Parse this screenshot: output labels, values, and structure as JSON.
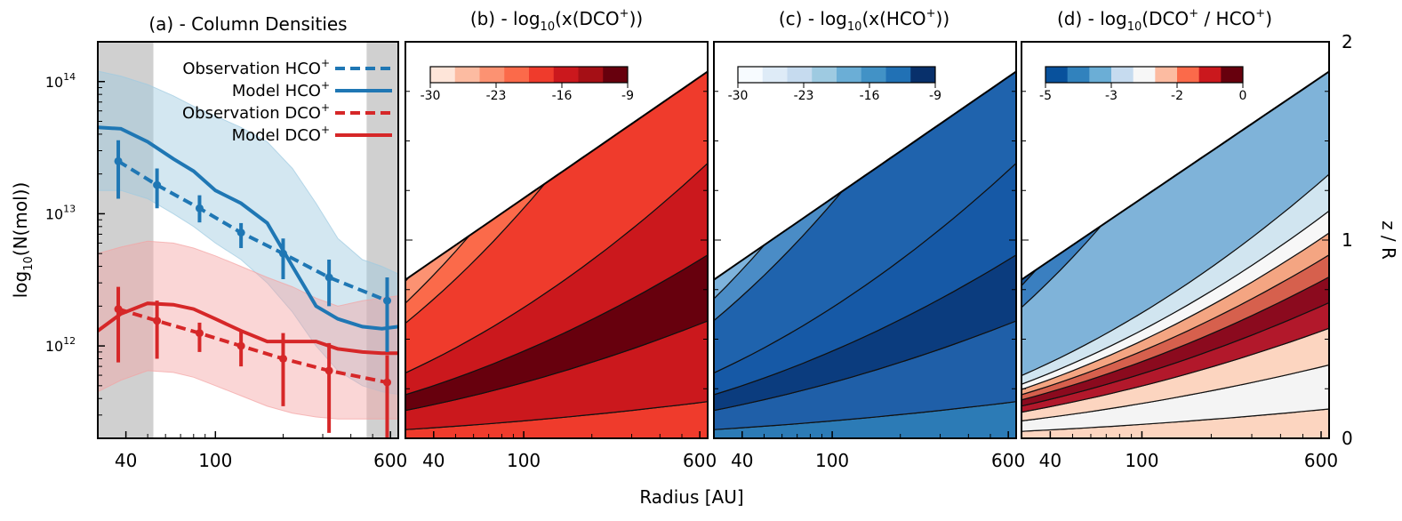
{
  "figure": {
    "xlabel": "Radius [AU]",
    "ylabel_left": "log",
    "ylabel_left_sub": "10",
    "ylabel_left_rest": "(N(mol))",
    "ylabel_right": "z / R"
  },
  "colors": {
    "hco_blue": "#1f77b4",
    "dco_red": "#d62728",
    "band_blue": "#9ecae1",
    "band_red": "#f4a3a3",
    "shade_gray": "#c8c8c8"
  },
  "chart_data": [
    {
      "type": "line",
      "title": "(a) - Column Densities",
      "xscale": "log",
      "yscale": "log",
      "xlim": [
        30,
        650
      ],
      "ylim": [
        200000000000.0,
        200000000000000.0
      ],
      "xticks": [
        {
          "value": 40,
          "label": "40"
        },
        {
          "value": 100,
          "label": "100"
        },
        {
          "value": 600,
          "label": "600"
        }
      ],
      "yticks": [
        {
          "value": 1000000000000.0,
          "base": "10",
          "exp": "12"
        },
        {
          "value": 10000000000000.0,
          "base": "10",
          "exp": "13"
        },
        {
          "value": 100000000000000.0,
          "base": "10",
          "exp": "14"
        }
      ],
      "shaded_regions": [
        [
          30,
          53
        ],
        [
          470,
          650
        ]
      ],
      "legend": {
        "position": "top-right",
        "entries": [
          {
            "label": "Observation HCO",
            "sup": "+",
            "style": "dashed",
            "color": "#1f77b4"
          },
          {
            "label": "Model HCO",
            "sup": "+",
            "style": "solid",
            "color": "#1f77b4"
          },
          {
            "label": "Observation DCO",
            "sup": "+",
            "style": "dashed",
            "color": "#d62728"
          },
          {
            "label": "Model DCO",
            "sup": "+",
            "style": "solid",
            "color": "#d62728"
          }
        ]
      },
      "series": [
        {
          "kind": "model",
          "color": "#1f77b4",
          "x": [
            30,
            38,
            50,
            65,
            80,
            100,
            130,
            170,
            220,
            280,
            350,
            450,
            550,
            650
          ],
          "y": [
            45000000000000.0,
            44000000000000.0,
            35000000000000.0,
            26000000000000.0,
            21000000000000.0,
            15000000000000.0,
            12000000000000.0,
            8500000000000.0,
            4000000000000.0,
            2000000000000.0,
            1600000000000.0,
            1400000000000.0,
            1350000000000.0,
            1400000000000.0
          ]
        },
        {
          "kind": "model_band",
          "color": "#9ecae1",
          "x": [
            30,
            38,
            50,
            65,
            80,
            100,
            130,
            170,
            220,
            280,
            350,
            450,
            550,
            650
          ],
          "upper": [
            120000000000000.0,
            110000000000000.0,
            95000000000000.0,
            78000000000000.0,
            65000000000000.0,
            55000000000000.0,
            45000000000000.0,
            35000000000000.0,
            22000000000000.0,
            12000000000000.0,
            6500000000000.0,
            4500000000000.0,
            4000000000000.0,
            3500000000000.0
          ],
          "lower": [
            15000000000000.0,
            15000000000000.0,
            13000000000000.0,
            10000000000000.0,
            8000000000000.0,
            6000000000000.0,
            4500000000000.0,
            3000000000000.0,
            1800000000000.0,
            1000000000000.0,
            650000000000.0,
            500000000000.0,
            450000000000.0,
            430000000000.0
          ]
        },
        {
          "kind": "observation",
          "color": "#1f77b4",
          "x": [
            37,
            55,
            85,
            130,
            200,
            320,
            580
          ],
          "y": [
            25000000000000.0,
            16500000000000.0,
            11000000000000.0,
            7200000000000.0,
            5000000000000.0,
            3300000000000.0,
            2200000000000.0
          ],
          "err_low": [
            13000000000000.0,
            11000000000000.0,
            8600000000000.0,
            5500000000000.0,
            3200000000000.0,
            2000000000000.0,
            900000000000.0
          ],
          "err_high": [
            36000000000000.0,
            22000000000000.0,
            13800000000000.0,
            8500000000000.0,
            6500000000000.0,
            4500000000000.0,
            3300000000000.0
          ]
        },
        {
          "kind": "model",
          "color": "#d62728",
          "x": [
            30,
            38,
            50,
            65,
            80,
            100,
            130,
            170,
            220,
            280,
            350,
            450,
            550,
            650
          ],
          "y": [
            1300000000000.0,
            1750000000000.0,
            2100000000000.0,
            2050000000000.0,
            1900000000000.0,
            1600000000000.0,
            1300000000000.0,
            1080000000000.0,
            1080000000000.0,
            1080000000000.0,
            950000000000.0,
            900000000000.0,
            880000000000.0,
            880000000000.0
          ]
        },
        {
          "kind": "model_band",
          "color": "#f4a3a3",
          "x": [
            30,
            38,
            50,
            65,
            80,
            100,
            130,
            170,
            220,
            280,
            350,
            450,
            550,
            650
          ],
          "upper": [
            5000000000000.0,
            5600000000000.0,
            6200000000000.0,
            6000000000000.0,
            5500000000000.0,
            4800000000000.0,
            4000000000000.0,
            3300000000000.0,
            2800000000000.0,
            2300000000000.0,
            2000000000000.0,
            2200000000000.0,
            2300000000000.0,
            2400000000000.0
          ],
          "lower": [
            450000000000.0,
            550000000000.0,
            650000000000.0,
            630000000000.0,
            580000000000.0,
            500000000000.0,
            420000000000.0,
            350000000000.0,
            310000000000.0,
            290000000000.0,
            280000000000.0,
            280000000000.0,
            280000000000.0,
            280000000000.0
          ]
        },
        {
          "kind": "observation",
          "color": "#d62728",
          "x": [
            37,
            55,
            85,
            130,
            200,
            320,
            580
          ],
          "y": [
            1900000000000.0,
            1550000000000.0,
            1250000000000.0,
            1000000000000.0,
            800000000000.0,
            650000000000.0,
            530000000000.0
          ],
          "err_low": [
            750000000000.0,
            800000000000.0,
            900000000000.0,
            700000000000.0,
            350000000000.0,
            220000000000.0,
            200000000000.0
          ],
          "err_high": [
            2800000000000.0,
            2200000000000.0,
            1500000000000.0,
            1300000000000.0,
            1250000000000.0,
            1050000000000.0,
            850000000000.0
          ]
        }
      ]
    },
    {
      "type": "heatmap",
      "title": "(b) - log",
      "title_sub": "10",
      "title_rest": "(x(DCO",
      "title_sup": "+",
      "title_end": "))",
      "colorbar": {
        "colors": [
          "#fee5d9",
          "#fcbba1",
          "#fc9272",
          "#fb6a4a",
          "#ef3b2c",
          "#cb181d",
          "#a50f15",
          "#67000d"
        ],
        "ticks": [
          "-30",
          "-23",
          "-16",
          "-9"
        ]
      },
      "xticks": [
        {
          "value": 40,
          "label": "40"
        },
        {
          "value": 100,
          "label": "100"
        },
        {
          "value": 600,
          "label": "600"
        }
      ],
      "bands_zr": [
        {
          "from": 0.0,
          "to": 0.1,
          "color": "#ef3b2c"
        },
        {
          "from": 0.1,
          "to": 0.32,
          "color": "#cb181d"
        },
        {
          "from": 0.32,
          "to": 0.5,
          "color": "#67000d"
        },
        {
          "from": 0.5,
          "to": 0.75,
          "color": "#cb181d"
        },
        {
          "from": 0.75,
          "to": 1.32,
          "color": "#ef3b2c"
        },
        {
          "from": 1.32,
          "to": 1.55,
          "color": "#fb6a4a"
        },
        {
          "from": 1.55,
          "to": 1.8,
          "color": "#fc9272"
        },
        {
          "from": 1.8,
          "to": 2.0,
          "color": "#fcbba1"
        }
      ]
    },
    {
      "type": "heatmap",
      "title": "(c) - log",
      "title_sub": "10",
      "title_rest": "(x(HCO",
      "title_sup": "+",
      "title_end": "))",
      "colorbar": {
        "colors": [
          "#f7fbff",
          "#deebf7",
          "#c6dbef",
          "#9ecae1",
          "#6baed6",
          "#4292c6",
          "#2171b5",
          "#08306b"
        ],
        "ticks": [
          "-30",
          "-23",
          "-16",
          "-9"
        ]
      },
      "xticks": [
        {
          "value": 40,
          "label": "40"
        },
        {
          "value": 100,
          "label": "100"
        },
        {
          "value": 600,
          "label": "600"
        }
      ],
      "bands_zr": [
        {
          "from": 0.0,
          "to": 0.1,
          "color": "#2c7bb6"
        },
        {
          "from": 0.1,
          "to": 0.32,
          "color": "#1f5fa8"
        },
        {
          "from": 0.32,
          "to": 0.5,
          "color": "#0b3c7e"
        },
        {
          "from": 0.5,
          "to": 0.75,
          "color": "#1659a6"
        },
        {
          "from": 0.75,
          "to": 1.35,
          "color": "#1f63ad"
        },
        {
          "from": 1.35,
          "to": 1.6,
          "color": "#4a8cc6"
        },
        {
          "from": 1.6,
          "to": 1.85,
          "color": "#7eb3dc"
        },
        {
          "from": 1.85,
          "to": 2.0,
          "color": "#b7d3ea"
        }
      ]
    },
    {
      "type": "heatmap",
      "title": "(d) - log",
      "title_sub": "10",
      "title_rest": "(DCO",
      "title_sup": "+",
      "title_mid": " / HCO",
      "title_sup2": "+",
      "title_end": ")",
      "colorbar": {
        "colors": [
          "#08519c",
          "#3182bd",
          "#6baed6",
          "#c6dbef",
          "#f7f7f7",
          "#fcbba1",
          "#fb6a4a",
          "#cb181d",
          "#67000d"
        ],
        "ticks": [
          "-5",
          "-3",
          "-2",
          "0"
        ]
      },
      "xticks": [
        {
          "value": 40,
          "label": "40"
        },
        {
          "value": 100,
          "label": "100"
        },
        {
          "value": 600,
          "label": "600"
        }
      ],
      "yticks_right": [
        {
          "value": 0,
          "label": "0"
        },
        {
          "value": 1,
          "label": "1"
        },
        {
          "value": 2,
          "label": "2"
        }
      ],
      "bands_zr": [
        {
          "from": 0.0,
          "to": 0.08,
          "color": "#fcd5c0"
        },
        {
          "from": 0.08,
          "to": 0.2,
          "color": "#f4f4f4"
        },
        {
          "from": 0.2,
          "to": 0.3,
          "color": "#fcd5c0"
        },
        {
          "from": 0.3,
          "to": 0.37,
          "color": "#b2182b"
        },
        {
          "from": 0.37,
          "to": 0.44,
          "color": "#8b0a1e"
        },
        {
          "from": 0.44,
          "to": 0.5,
          "color": "#d6604d"
        },
        {
          "from": 0.5,
          "to": 0.56,
          "color": "#f4a582"
        },
        {
          "from": 0.56,
          "to": 0.62,
          "color": "#f7f7f7"
        },
        {
          "from": 0.62,
          "to": 0.72,
          "color": "#d1e5f0"
        },
        {
          "from": 0.72,
          "to": 1.5,
          "color": "#7fb3d9"
        },
        {
          "from": 1.5,
          "to": 1.75,
          "color": "#3a7fc0"
        },
        {
          "from": 1.75,
          "to": 2.0,
          "color": "#1b5aa0"
        }
      ]
    }
  ]
}
